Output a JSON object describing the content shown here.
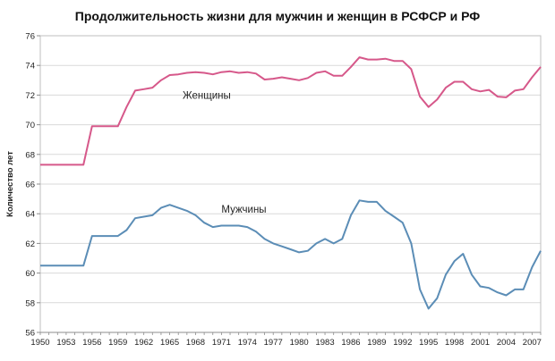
{
  "chart_data": {
    "type": "line",
    "title": "Продолжительность жизни для мужчин и женщин в РСФСР и РФ",
    "xlabel": "",
    "ylabel": "Количество лет",
    "xlim": [
      1950,
      2008
    ],
    "ylim": [
      56,
      76
    ],
    "y_ticks": [
      56,
      58,
      60,
      62,
      64,
      66,
      68,
      70,
      72,
      74,
      76
    ],
    "x_ticks": [
      1950,
      1953,
      1956,
      1959,
      1962,
      1965,
      1968,
      1971,
      1974,
      1977,
      1980,
      1983,
      1986,
      1989,
      1992,
      1995,
      1998,
      2001,
      2004,
      2007
    ],
    "grid": "horizontal",
    "legend": "none",
    "series": [
      {
        "name": "Женщины",
        "color": "#d6588a",
        "x": [
          1950,
          1955,
          1956,
          1959,
          1960,
          1961,
          1962,
          1963,
          1964,
          1965,
          1966,
          1967,
          1968,
          1969,
          1970,
          1971,
          1972,
          1973,
          1974,
          1975,
          1976,
          1977,
          1978,
          1979,
          1980,
          1981,
          1982,
          1983,
          1984,
          1985,
          1986,
          1987,
          1988,
          1989,
          1990,
          1991,
          1992,
          1993,
          1994,
          1995,
          1996,
          1997,
          1998,
          1999,
          2000,
          2001,
          2002,
          2003,
          2004,
          2005,
          2006,
          2007,
          2008
        ],
        "values": [
          67.3,
          67.3,
          69.9,
          69.9,
          71.2,
          72.3,
          72.4,
          72.5,
          73.0,
          73.35,
          73.4,
          73.5,
          73.55,
          73.5,
          73.4,
          73.55,
          73.6,
          73.5,
          73.55,
          73.45,
          73.05,
          73.1,
          73.2,
          73.1,
          73.0,
          73.15,
          73.5,
          73.6,
          73.3,
          73.3,
          73.9,
          74.55,
          74.4,
          74.4,
          74.45,
          74.3,
          74.3,
          73.75,
          71.9,
          71.2,
          71.7,
          72.5,
          72.9,
          72.9,
          72.4,
          72.25,
          72.35,
          71.9,
          71.85,
          72.3,
          72.4,
          73.2,
          73.9
        ]
      },
      {
        "name": "Мужчины",
        "color": "#5b8db6",
        "x": [
          1950,
          1955,
          1956,
          1959,
          1960,
          1961,
          1962,
          1963,
          1964,
          1965,
          1966,
          1967,
          1968,
          1969,
          1970,
          1971,
          1972,
          1973,
          1974,
          1975,
          1976,
          1977,
          1978,
          1979,
          1980,
          1981,
          1982,
          1983,
          1984,
          1985,
          1986,
          1987,
          1988,
          1989,
          1990,
          1991,
          1992,
          1993,
          1994,
          1995,
          1996,
          1997,
          1998,
          1999,
          2000,
          2001,
          2002,
          2003,
          2004,
          2005,
          2006,
          2007,
          2008
        ],
        "values": [
          60.5,
          60.5,
          62.5,
          62.5,
          62.9,
          63.7,
          63.8,
          63.9,
          64.4,
          64.6,
          64.4,
          64.2,
          63.9,
          63.4,
          63.1,
          63.2,
          63.2,
          63.2,
          63.1,
          62.8,
          62.3,
          62.0,
          61.8,
          61.6,
          61.4,
          61.5,
          62.0,
          62.3,
          62.0,
          62.3,
          63.9,
          64.9,
          64.8,
          64.8,
          64.2,
          63.8,
          63.4,
          62.0,
          58.9,
          57.6,
          58.3,
          59.9,
          60.8,
          61.3,
          59.9,
          59.1,
          59.0,
          58.7,
          58.5,
          58.9,
          58.9,
          60.4,
          61.5
        ]
      }
    ],
    "annotations": [
      "Женщины",
      "Мужчины"
    ]
  }
}
